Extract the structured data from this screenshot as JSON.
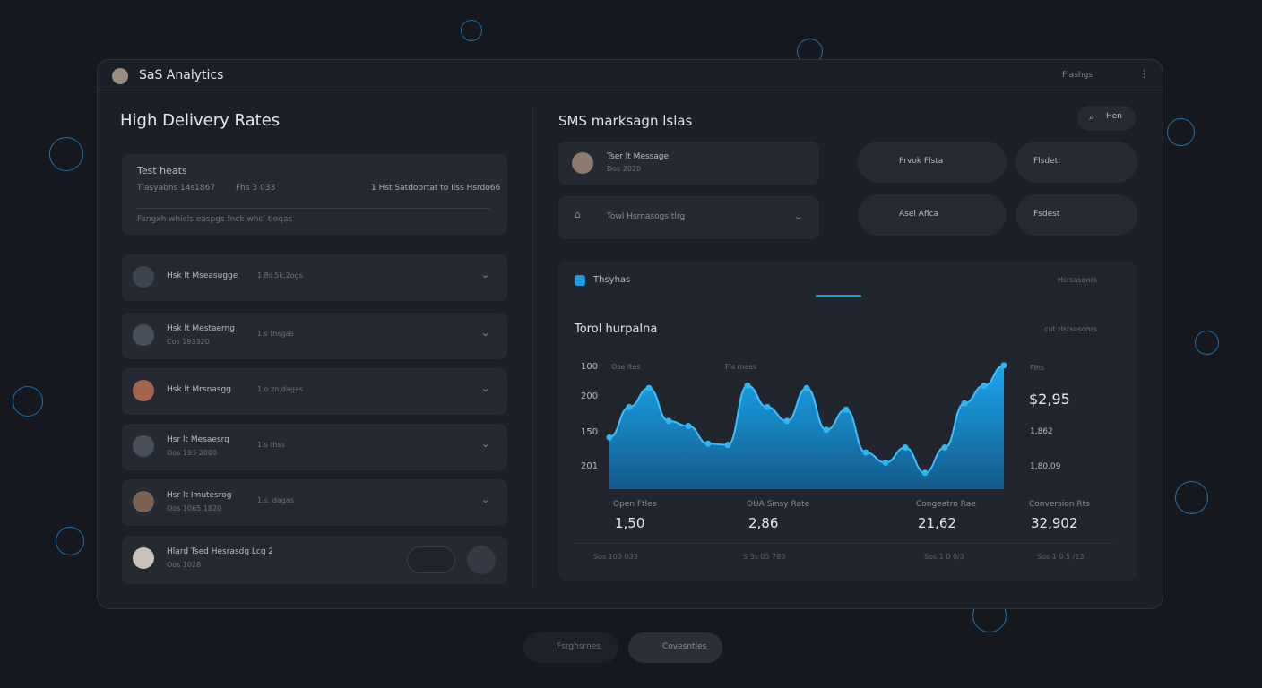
{
  "header": {
    "brand": "SaS Analytics",
    "menu": "Flashgs"
  },
  "left": {
    "title": "High Delivery Rates",
    "summary": {
      "label": "Test heats",
      "stat1": "Tlasyabhs 14s1867",
      "stat2": "Fhs 3 033",
      "stat3": "1 Hst Satdoprtat to Ilss Hsrdo66",
      "note": "Fangxh whicls easpgs fnck whcl tloqas"
    },
    "items": [
      {
        "name": "Hsk lt Mseasugge",
        "meta": "1.8s.5k.2ogs"
      },
      {
        "name": "Hsk lt Mestaerng",
        "meta": "1.s thsgas",
        "sub": "Cos 193320"
      },
      {
        "name": "Hsk lt Mrsnasgg",
        "meta": "1.o zn.dagas"
      },
      {
        "name": "Hsr lt Mesaesrg",
        "meta": "1.s thss",
        "sub": "Oos 193 2000"
      },
      {
        "name": "Hsr lt Imutesrog",
        "meta": "1.s. dagas",
        "sub": "Oos 1065 1820"
      },
      {
        "name": "Hlard Tsed Hesrasdg Lcg 2",
        "sub": "Oos 1028"
      }
    ]
  },
  "middle": {
    "title": "SMS marksagn lslas",
    "search": "Hen",
    "card1": {
      "name": "Tser lt Message",
      "sub": "Dos 2020"
    },
    "card2": {
      "name": "Towl Hsrnasogs tlrg"
    },
    "pills": [
      "Prvok Flsta",
      "Flsdetr",
      "Asel Afica",
      "Fsdest"
    ]
  },
  "chart": {
    "tab": "Thsyhas",
    "menu": "Hsrsasonrs",
    "title": "Torol hurpalna",
    "filter": "cut Hstsosonrs",
    "ylabels": [
      "100",
      "200",
      "150",
      "201"
    ],
    "top_labels": [
      "Ose ltes",
      "Fls rnass",
      "Flhs"
    ],
    "side_values": [
      "$2,95",
      "1,862",
      "1,80.09"
    ],
    "ylim": [
      0,
      100
    ],
    "values": [
      41,
      65,
      80,
      54,
      50,
      36,
      35,
      82,
      65,
      54,
      80,
      47,
      63,
      29,
      21,
      33,
      13,
      33,
      68,
      82,
      98
    ],
    "stats": [
      {
        "label": "Open Ftles",
        "value": "1,50"
      },
      {
        "label": "OUA Sinsy Rate",
        "value": "2,86"
      },
      {
        "label": "Congeatro Rae",
        "value": "21,62"
      },
      {
        "label": "Conversion Rts",
        "value": "32,902"
      }
    ],
    "footer": [
      "Sos 103 033",
      "S 3s 05 783",
      "Sos 1 0 0/3",
      "Sos 1 0 5 /13"
    ]
  },
  "bottom": [
    "Fsrghsrnes",
    "Covesntles"
  ]
}
